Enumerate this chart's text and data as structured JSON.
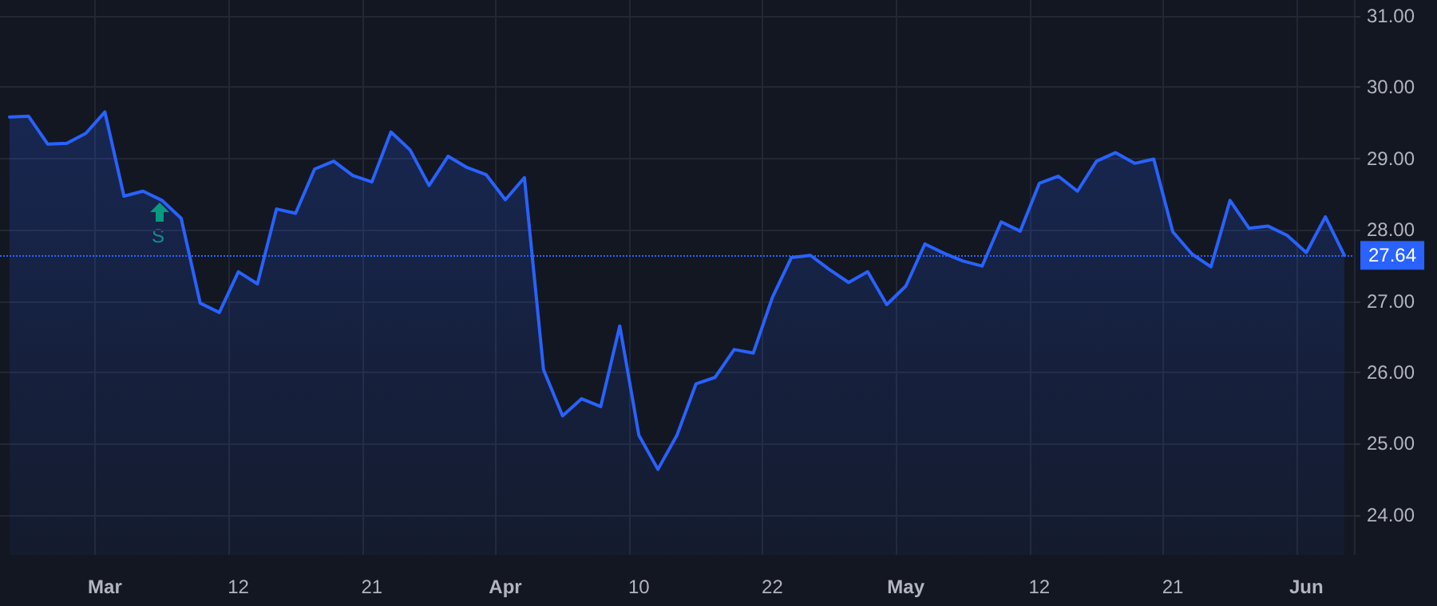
{
  "chart_data": {
    "type": "area",
    "categories": [
      null,
      null,
      null,
      null,
      null,
      "Mar",
      null,
      null,
      null,
      null,
      null,
      null,
      "12",
      null,
      null,
      null,
      null,
      null,
      null,
      "21",
      null,
      null,
      null,
      null,
      null,
      null,
      "Apr",
      null,
      null,
      null,
      null,
      null,
      null,
      "10",
      null,
      null,
      null,
      null,
      null,
      null,
      "22",
      null,
      null,
      null,
      null,
      null,
      null,
      "May",
      null,
      null,
      null,
      null,
      null,
      null,
      "12",
      null,
      null,
      null,
      null,
      null,
      null,
      "21",
      null,
      null,
      null,
      null,
      null,
      null,
      "Jun",
      null,
      null
    ],
    "series": [
      {
        "color": "#2962ff",
        "values": [
          29.58,
          29.59,
          29.2,
          29.21,
          29.35,
          29.65,
          28.47,
          28.54,
          28.41,
          28.16,
          26.97,
          26.84,
          27.41,
          27.24,
          28.29,
          28.23,
          28.85,
          28.96,
          28.76,
          28.67,
          29.37,
          29.12,
          28.62,
          29.03,
          28.87,
          28.77,
          28.42,
          28.73,
          26.04,
          25.39,
          25.63,
          25.52,
          26.65,
          25.12,
          24.64,
          25.12,
          25.84,
          25.93,
          26.32,
          26.27,
          27.05,
          27.61,
          27.64,
          27.44,
          27.26,
          27.41,
          26.95,
          27.21,
          27.8,
          27.67,
          27.56,
          27.49,
          28.11,
          27.98,
          28.65,
          28.75,
          28.54,
          28.96,
          29.08,
          28.93,
          28.99,
          27.97,
          27.66,
          27.48,
          28.41,
          28.02,
          28.05,
          27.92,
          27.68,
          28.18,
          27.64
        ]
      }
    ],
    "ylim": [
      23.44,
      31.22
    ],
    "yticks": [
      {
        "value": 24,
        "label": "24.00"
      },
      {
        "value": 25,
        "label": "25.00"
      },
      {
        "value": 26,
        "label": "26.00"
      },
      {
        "value": 27,
        "label": "27.00"
      },
      {
        "value": 28,
        "label": "28.00"
      },
      {
        "value": 29,
        "label": "29.00"
      },
      {
        "value": 30,
        "label": "30.00"
      },
      {
        "value": 31,
        "label": "31.00"
      }
    ],
    "ref_lines": [
      {
        "axis": "y",
        "value": 27.64,
        "label": "27.64",
        "color": "#2962ff",
        "line_style": "dotted"
      }
    ],
    "annotations": [
      "S"
    ],
    "grid": true,
    "marker": "none",
    "line_style": "solid"
  }
}
